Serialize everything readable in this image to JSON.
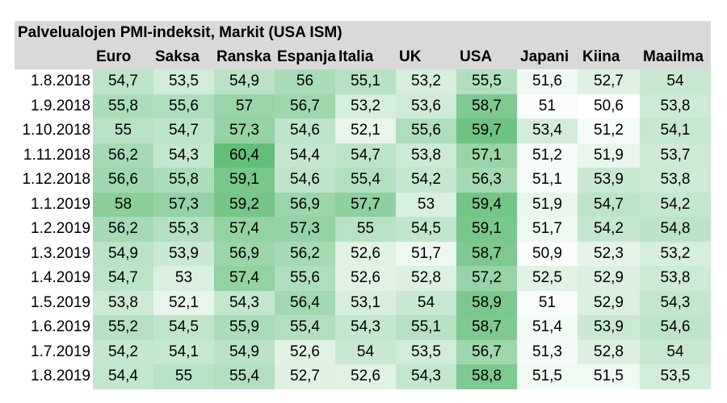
{
  "chart_data": {
    "type": "heatmap",
    "title": "Palvelualojen PMI-indeksit, Markit (USA ISM)",
    "columns": [
      "Euro",
      "Saksa",
      "Ranska",
      "Espanja",
      "Italia",
      "UK",
      "USA",
      "Japani",
      "Kiina",
      "Maailma"
    ],
    "rows": [
      "1.8.2018",
      "1.9.2018",
      "1.10.2018",
      "1.11.2018",
      "1.12.2018",
      "1.1.2019",
      "1.2.2019",
      "1.3.2019",
      "1.4.2019",
      "1.5.2019",
      "1.6.2019",
      "1.7.2019",
      "1.8.2019"
    ],
    "values": [
      [
        "54,7",
        "53,5",
        "54,9",
        "56",
        "55,1",
        "53,2",
        "55,5",
        "51,6",
        "52,7",
        "54"
      ],
      [
        "55,8",
        "55,6",
        "57",
        "56,7",
        "53,2",
        "53,6",
        "58,7",
        "51",
        "50,6",
        "53,8"
      ],
      [
        "55",
        "54,7",
        "57,3",
        "54,6",
        "52,1",
        "55,6",
        "59,7",
        "53,4",
        "51,2",
        "54,1"
      ],
      [
        "56,2",
        "54,3",
        "60,4",
        "54,4",
        "54,7",
        "53,8",
        "57,1",
        "51,2",
        "51,9",
        "53,7"
      ],
      [
        "56,6",
        "55,8",
        "59,1",
        "54,6",
        "55,4",
        "54,2",
        "56,3",
        "51,1",
        "53,9",
        "53,8"
      ],
      [
        "58",
        "57,3",
        "59,2",
        "56,9",
        "57,7",
        "53",
        "59,4",
        "51,9",
        "54,7",
        "54,2"
      ],
      [
        "56,2",
        "55,3",
        "57,4",
        "57,3",
        "55",
        "54,5",
        "59,1",
        "51,7",
        "54,2",
        "54,8"
      ],
      [
        "54,9",
        "53,9",
        "56,9",
        "56,2",
        "52,6",
        "51,7",
        "58,7",
        "50,9",
        "52,3",
        "53,2"
      ],
      [
        "54,7",
        "53",
        "57,4",
        "55,6",
        "52,6",
        "52,8",
        "57,2",
        "52,5",
        "52,9",
        "53,8"
      ],
      [
        "53,8",
        "52,1",
        "54,3",
        "56,4",
        "53,1",
        "54",
        "58,9",
        "51",
        "52,9",
        "54,3"
      ],
      [
        "55,2",
        "54,5",
        "55,9",
        "55,4",
        "54,3",
        "55,1",
        "58,7",
        "51,4",
        "53,9",
        "54,6"
      ],
      [
        "54,2",
        "54,1",
        "54,9",
        "52,6",
        "54",
        "53,5",
        "56,7",
        "51,3",
        "52,8",
        "54"
      ],
      [
        "54,4",
        "55",
        "55,4",
        "52,7",
        "52,6",
        "54,3",
        "58,8",
        "51,5",
        "51,5",
        "53,5"
      ]
    ],
    "color_low": "#ffffff",
    "color_high": "#63be7b",
    "header_bg": "#d9d9d9"
  }
}
